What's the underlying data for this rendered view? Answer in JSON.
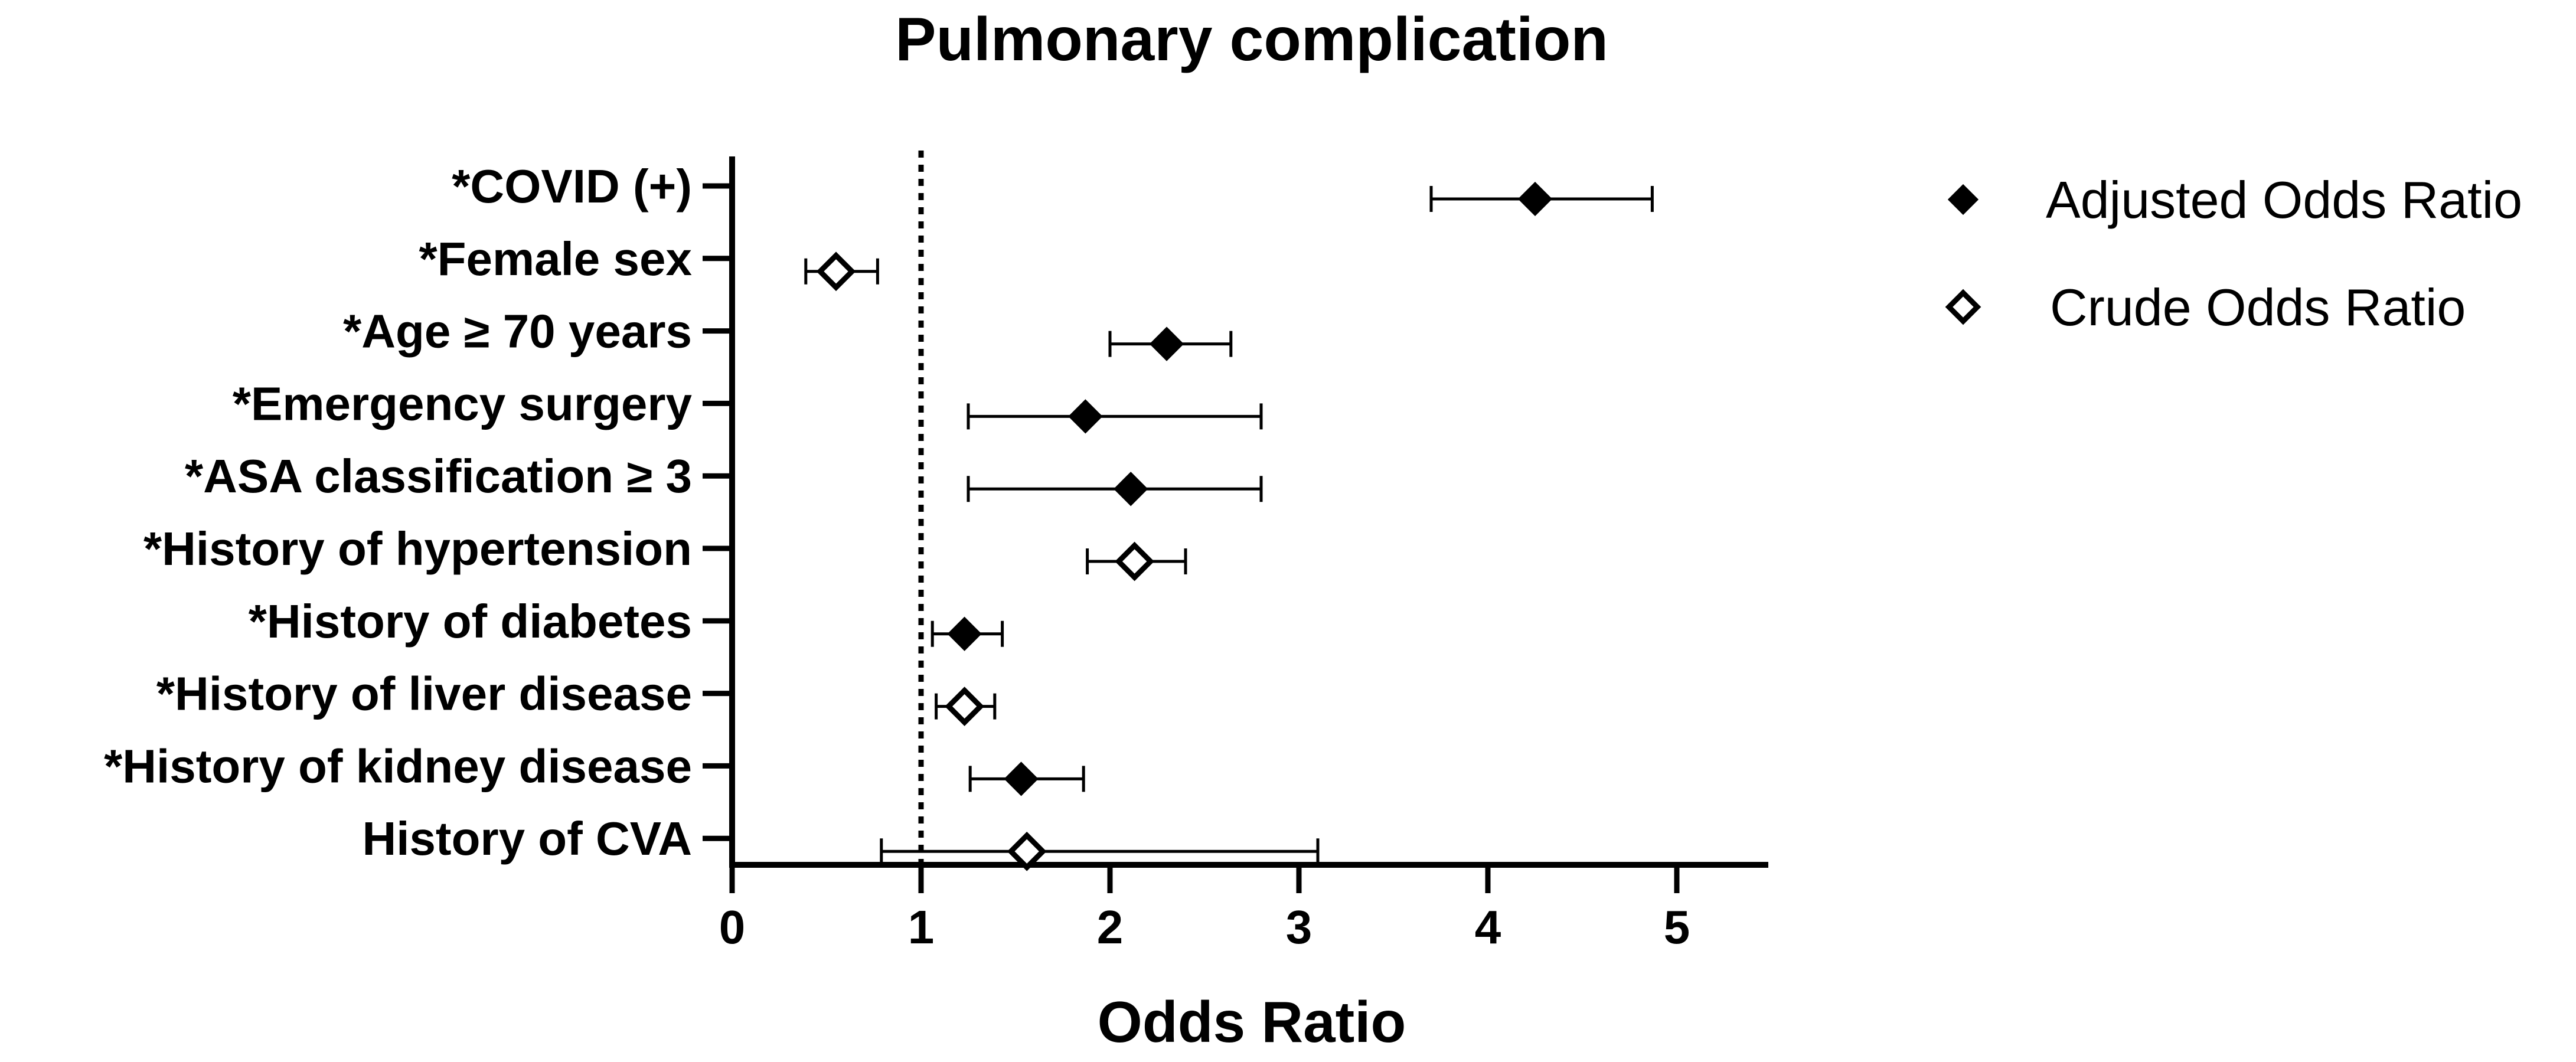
{
  "chart_data": {
    "type": "scatter",
    "subtype": "forest-plot",
    "title": "Pulmonary complication",
    "xlabel": "Odds Ratio",
    "ylabel": "",
    "xlim": [
      0,
      5.5
    ],
    "xticks": [
      0,
      1,
      2,
      3,
      4,
      5
    ],
    "xtick_labels": [
      "0",
      "1",
      "2",
      "3",
      "4",
      "5"
    ],
    "reference_line": 1,
    "reference_line_style": "dotted",
    "grid": false,
    "legend_position": "top-right",
    "categories": [
      "*COVID (+)",
      "*Female sex",
      "*Age ≥ 70 years",
      "*Emergency surgery",
      "*ASA classification ≥ 3",
      "*History of hypertension",
      "*History of diabetes",
      "*History of liver disease",
      "*History of kidney disease",
      "History of CVA"
    ],
    "series": [
      {
        "name": "Adjusted Odds Ratio",
        "marker": "filled-diamond",
        "color": "#000000",
        "points": [
          {
            "category": "*COVID (+)",
            "value": 4.25,
            "lower": 3.7,
            "upper": 4.87
          },
          {
            "category": "*Age ≥ 70 years",
            "value": 2.3,
            "lower": 2.0,
            "upper": 2.64
          },
          {
            "category": "*Emergency surgery",
            "value": 1.87,
            "lower": 1.25,
            "upper": 2.8
          },
          {
            "category": "*ASA classification ≥ 3",
            "value": 2.11,
            "lower": 1.25,
            "upper": 2.8
          },
          {
            "category": "*History of diabetes",
            "value": 1.23,
            "lower": 1.06,
            "upper": 1.43
          },
          {
            "category": "*History of kidney disease",
            "value": 1.53,
            "lower": 1.26,
            "upper": 1.86
          }
        ]
      },
      {
        "name": "Crude Odds Ratio",
        "marker": "open-diamond",
        "color": "#000000",
        "points": [
          {
            "category": "*Female sex",
            "value": 0.55,
            "lower": 0.39,
            "upper": 0.77
          },
          {
            "category": "*History of hypertension",
            "value": 2.13,
            "lower": 1.88,
            "upper": 2.4
          },
          {
            "category": "*History of liver disease",
            "value": 1.23,
            "lower": 1.08,
            "upper": 1.39
          },
          {
            "category": "History of CVA",
            "value": 1.56,
            "lower": 0.79,
            "upper": 3.1
          }
        ]
      }
    ]
  }
}
